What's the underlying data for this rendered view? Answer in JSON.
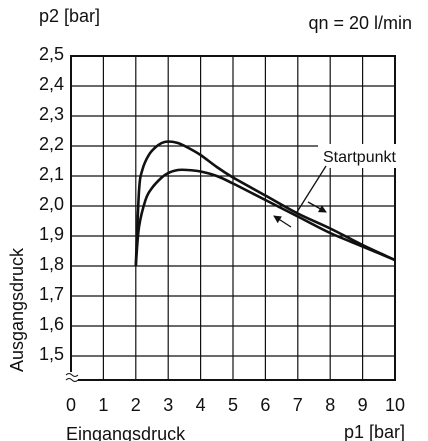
{
  "chart_data": {
    "type": "line",
    "unit_label_y": "p2 [bar]",
    "unit_label_x": "p1 [bar]",
    "flow_label": "qn = 20 l/min",
    "ylabel": "Ausgangsdruck",
    "xlabel": "Eingangsdruck",
    "annotation": "Startpunkt",
    "x_ticks": [
      "0",
      "1",
      "2",
      "3",
      "4",
      "5",
      "6",
      "7",
      "8",
      "9",
      "10"
    ],
    "y_ticks": [
      "1,5",
      "1,6",
      "1,7",
      "1,8",
      "1,9",
      "2,0",
      "2,1",
      "2,2",
      "2,3",
      "2,4",
      "2,5"
    ],
    "xlim": [
      0,
      10
    ],
    "ylim": [
      1.45,
      2.5
    ],
    "grid": true,
    "series": [
      {
        "x": [
          2.0,
          2.1,
          2.2,
          2.4,
          2.6,
          2.8,
          3.0,
          3.3,
          3.6,
          4.0,
          4.5,
          5.0,
          6.0,
          7.0,
          8.0,
          9.0,
          10.0
        ],
        "y": [
          1.8,
          2.05,
          2.12,
          2.17,
          2.195,
          2.21,
          2.215,
          2.21,
          2.195,
          2.17,
          2.13,
          2.095,
          2.035,
          1.975,
          1.925,
          1.87,
          1.82
        ]
      },
      {
        "x": [
          2.0,
          2.1,
          2.3,
          2.5,
          2.8,
          3.0,
          3.3,
          3.6,
          4.0,
          4.5,
          5.0,
          6.0,
          7.0,
          8.0,
          9.0,
          10.0
        ],
        "y": [
          1.8,
          1.93,
          2.02,
          2.06,
          2.095,
          2.11,
          2.12,
          2.12,
          2.115,
          2.1,
          2.075,
          2.02,
          1.965,
          1.91,
          1.865,
          1.82
        ]
      }
    ]
  }
}
